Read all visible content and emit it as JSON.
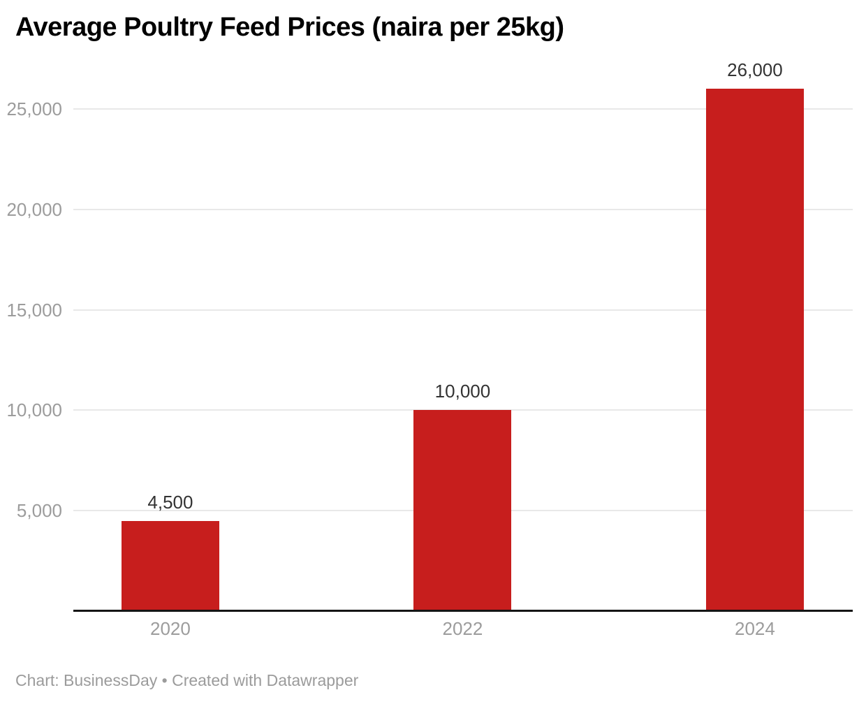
{
  "chart_data": {
    "type": "bar",
    "title": "Average Poultry Feed Prices (naira per 25kg)",
    "categories": [
      "2020",
      "2022",
      "2024"
    ],
    "values": [
      4500,
      10000,
      26000
    ],
    "value_labels": [
      "4,500",
      "10,000",
      "26,000"
    ],
    "yticks": [
      5000,
      10000,
      15000,
      20000,
      25000
    ],
    "ytick_labels": [
      "5,000",
      "10,000",
      "15,000",
      "20,000",
      "25,000"
    ],
    "ylim": [
      0,
      26600
    ],
    "grid": true,
    "legend": "none",
    "xlabel": "",
    "ylabel": ""
  },
  "footer": {
    "text": "Chart: BusinessDay • Created with Datawrapper"
  },
  "colors": {
    "bar": "#c71e1d",
    "grid": "#e8e8e8",
    "axis": "#151515",
    "tick-text": "#9c9c9c",
    "value-text": "#333333",
    "title-text": "#000000",
    "footer-text": "#9b9b9b"
  }
}
